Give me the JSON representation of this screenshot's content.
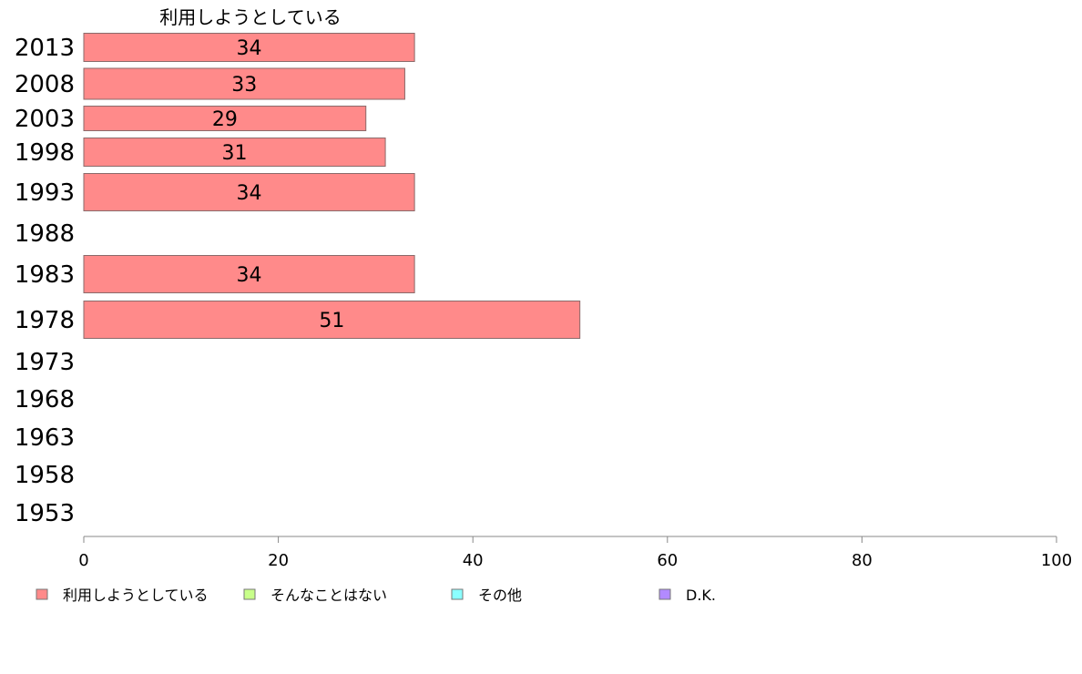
{
  "chart_data": {
    "type": "bar",
    "orientation": "horizontal",
    "stacked": true,
    "categories": [
      "2013",
      "2008",
      "2003",
      "1998",
      "1993",
      "1988",
      "1983",
      "1978",
      "1973",
      "1968",
      "1963",
      "1958",
      "1953"
    ],
    "series": [
      {
        "name": "利用しようとしている",
        "color": "#ff8a8a",
        "values": [
          34,
          33,
          29,
          31,
          34,
          null,
          34,
          51,
          null,
          null,
          null,
          null,
          null
        ]
      },
      {
        "name": "そんなことはない",
        "color": "#c8ff8a",
        "values": [
          null,
          null,
          null,
          null,
          null,
          null,
          null,
          null,
          null,
          null,
          null,
          null,
          null
        ]
      },
      {
        "name": "その他",
        "color": "#8affff",
        "values": [
          null,
          null,
          null,
          null,
          null,
          null,
          null,
          null,
          null,
          null,
          null,
          null,
          null
        ]
      },
      {
        "name": "D.K.",
        "color": "#b28aff",
        "values": [
          null,
          null,
          null,
          null,
          null,
          null,
          null,
          null,
          null,
          null,
          null,
          null,
          null
        ]
      }
    ],
    "series_header": "利用しようとしている",
    "xlim": [
      0,
      100
    ],
    "xticks": [
      0,
      20,
      40,
      60,
      80,
      100
    ],
    "grid": false,
    "legend_position": "bottom"
  }
}
